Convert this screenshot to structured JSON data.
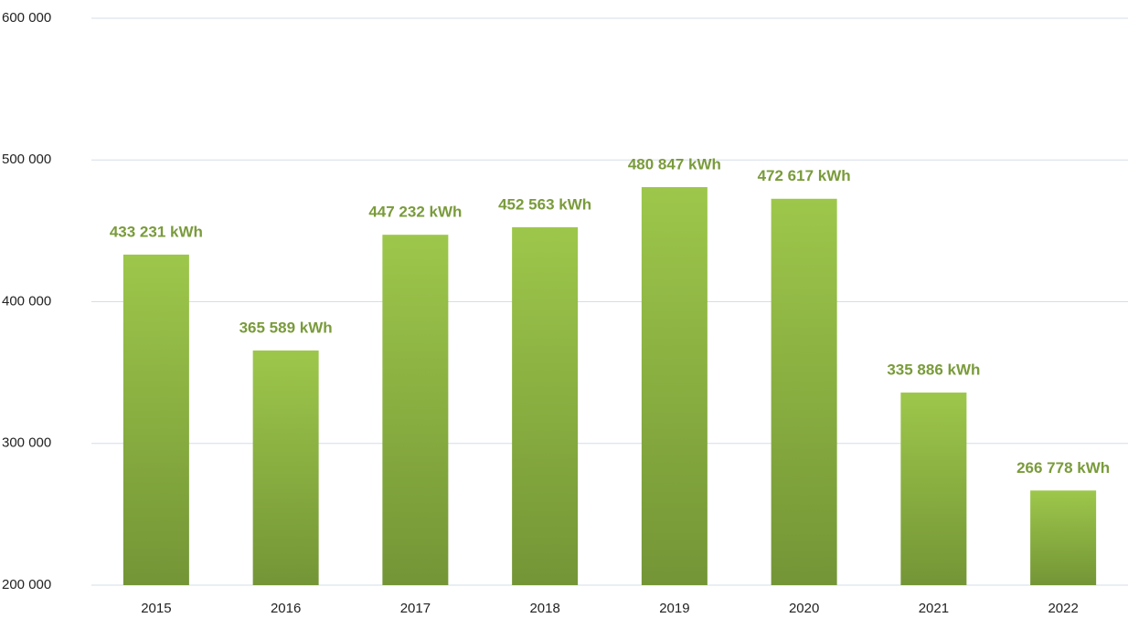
{
  "chart_data": {
    "type": "bar",
    "categories": [
      "2015",
      "2016",
      "2017",
      "2018",
      "2019",
      "2020",
      "2021",
      "2022"
    ],
    "values": [
      433231,
      365589,
      447232,
      452563,
      480847,
      472617,
      335886,
      266778
    ],
    "value_labels": [
      "433 231 kWh",
      "365 589 kWh",
      "447 232 kWh",
      "452 563 kWh",
      "480 847 kWh",
      "472 617 kWh",
      "335 886 kWh",
      "266 778 kWh"
    ],
    "gradient": [
      "#9dc74b",
      "#749536"
    ],
    "label_color": "#7a9b3b",
    "ylim": [
      200000,
      600000
    ],
    "yticks": [
      {
        "value": 200000,
        "label": "200 000"
      },
      {
        "value": 300000,
        "label": "300 000"
      },
      {
        "value": 400000,
        "label": "400 000"
      },
      {
        "value": 500000,
        "label": "500 000"
      },
      {
        "value": 600000,
        "label": "600 000"
      }
    ],
    "grid": true
  }
}
